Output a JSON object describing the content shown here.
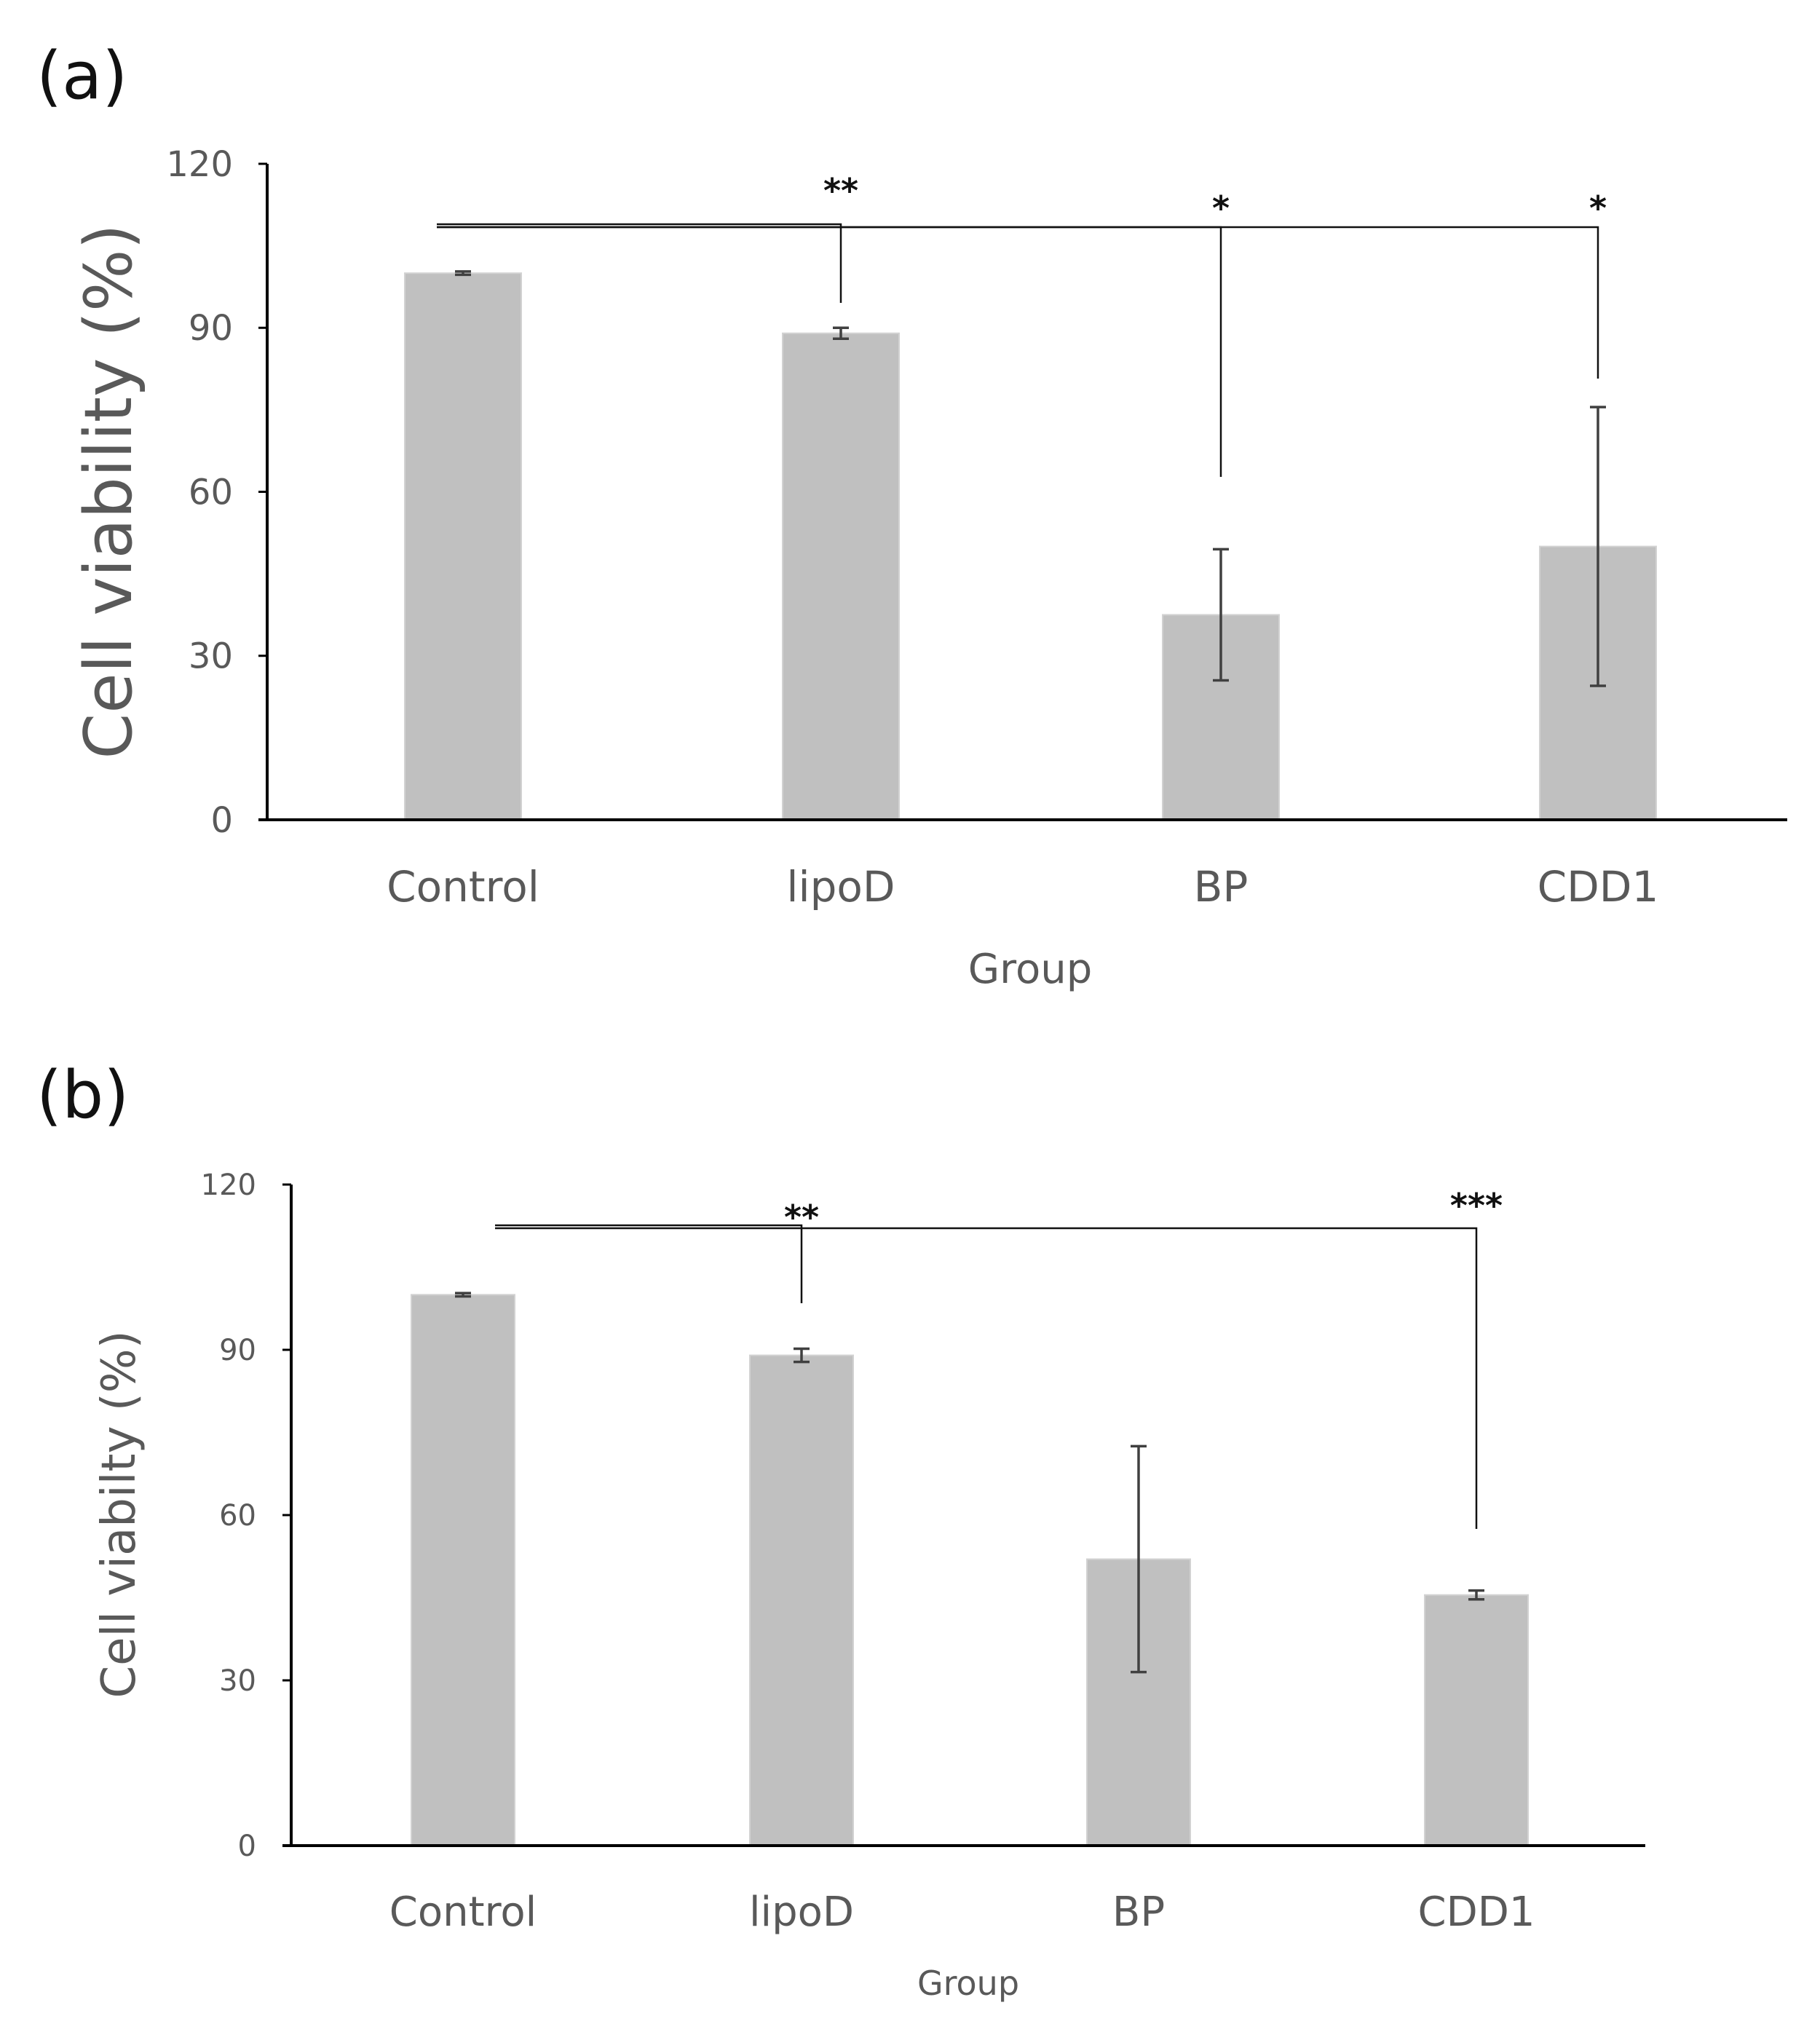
{
  "chart_data": [
    {
      "panel_label": "(a)",
      "type": "bar",
      "categories": [
        "Control",
        "lipoD",
        "BP",
        "CDD1"
      ],
      "values": [
        100,
        89,
        37.5,
        50
      ],
      "errors": [
        0.3,
        1,
        12,
        25.5
      ],
      "xlabel": "Group",
      "ylabel": "Cell viability (%)",
      "ylim": [
        0,
        120
      ],
      "yticks": [
        0,
        30,
        60,
        90,
        120
      ],
      "significance": [
        {
          "from": "Control",
          "to": "lipoD",
          "label": "**"
        },
        {
          "from": "Control",
          "to": "BP",
          "label": "*"
        },
        {
          "from": "Control",
          "to": "CDD1",
          "label": "*"
        }
      ]
    },
    {
      "panel_label": "(b)",
      "type": "bar",
      "categories": [
        "Control",
        "lipoD",
        "BP",
        "CDD1"
      ],
      "values": [
        100,
        89,
        52,
        45.5
      ],
      "errors": [
        0.3,
        1.2,
        20.5,
        0.8
      ],
      "xlabel": "Group",
      "ylabel": "Cell viabilty (%)",
      "ylim": [
        0,
        120
      ],
      "yticks": [
        0,
        30,
        60,
        90,
        120
      ],
      "significance": [
        {
          "from": "Control",
          "to": "lipoD",
          "label": "**"
        },
        {
          "from": "Control",
          "to": "CDD1",
          "label": "***"
        }
      ]
    }
  ]
}
